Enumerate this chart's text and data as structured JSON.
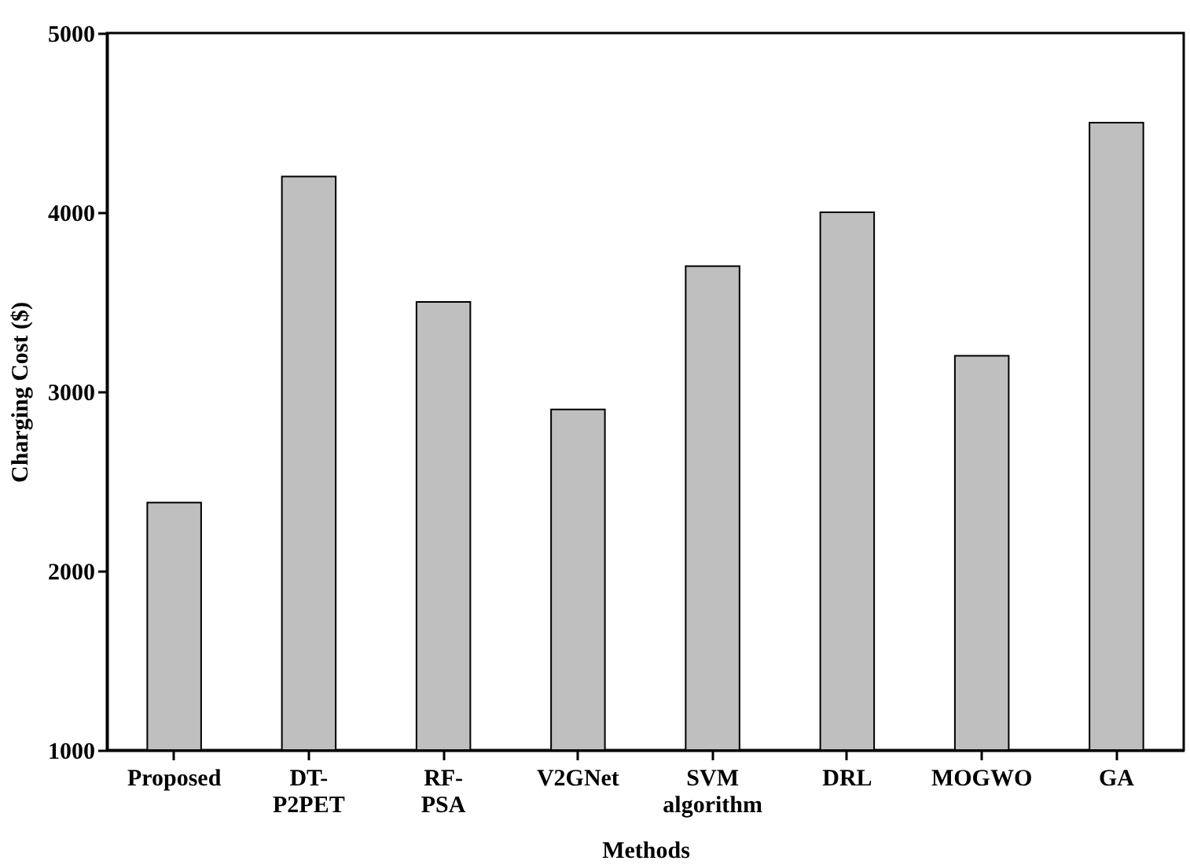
{
  "chart_data": {
    "type": "bar",
    "xlabel": "Methods",
    "ylabel": "Charging Cost ($)",
    "categories": [
      "Proposed",
      "DT-P2PET",
      "RF-PSA",
      "V2GNet",
      "SVM algorithm",
      "DRL",
      "MOGWO",
      "GA"
    ],
    "values": [
      2380,
      4200,
      3500,
      2900,
      3700,
      4000,
      3200,
      4500
    ],
    "color": "#bfbfbf",
    "ylim": [
      1000,
      5000
    ],
    "yticks": [
      1000,
      2000,
      3000,
      4000,
      5000
    ]
  }
}
